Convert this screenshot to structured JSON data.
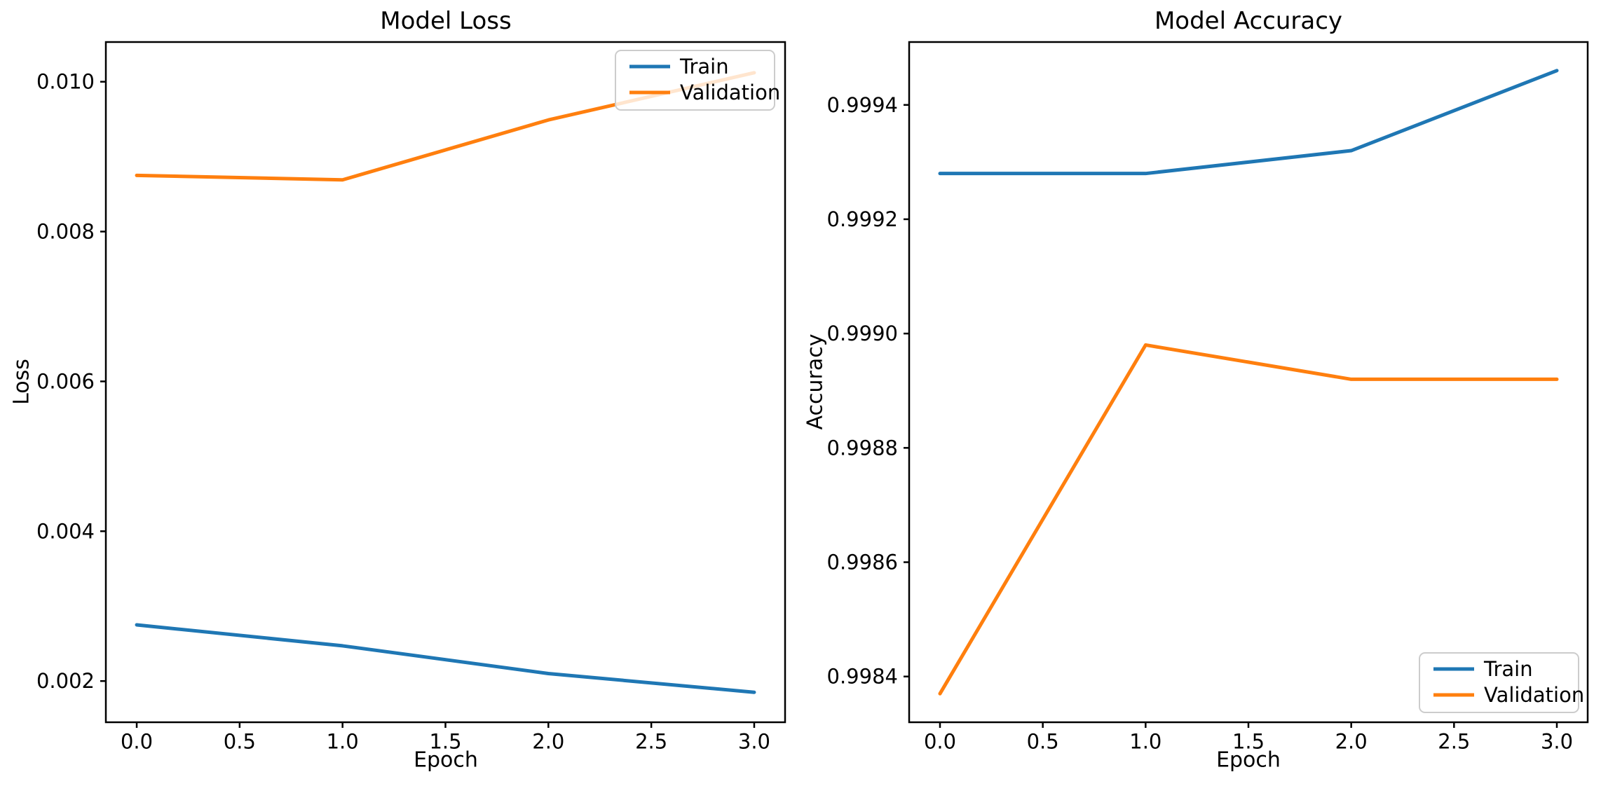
{
  "figure": {
    "background": "#ffffff",
    "text_color": "#000000",
    "spine_color": "#000000"
  },
  "chart_data": [
    {
      "type": "line",
      "title": "Model Loss",
      "xlabel": "Epoch",
      "ylabel": "Loss",
      "x": [
        0,
        1,
        2,
        3
      ],
      "series": [
        {
          "name": "Train",
          "color": "#1f77b4",
          "values": [
            0.00275,
            0.00247,
            0.0021,
            0.00185
          ]
        },
        {
          "name": "Validation",
          "color": "#ff7f0e",
          "values": [
            0.00875,
            0.00869,
            0.00949,
            0.01012
          ]
        }
      ],
      "xlim": [
        -0.15,
        3.15
      ],
      "ylim": [
        0.00145,
        0.01053
      ],
      "xticks": [
        0,
        0.5,
        1,
        1.5,
        2,
        2.5,
        3
      ],
      "xtick_labels": [
        "0.0",
        "0.5",
        "1.0",
        "1.5",
        "2.0",
        "2.5",
        "3.0"
      ],
      "yticks": [
        0.002,
        0.004,
        0.006,
        0.008,
        0.01
      ],
      "ytick_labels": [
        "0.002",
        "0.004",
        "0.006",
        "0.008",
        "0.010"
      ],
      "grid": false,
      "legend": {
        "position": "upper-right",
        "items": [
          "Train",
          "Validation"
        ]
      }
    },
    {
      "type": "line",
      "title": "Model Accuracy",
      "xlabel": "Epoch",
      "ylabel": "Accuracy",
      "x": [
        0,
        1,
        2,
        3
      ],
      "series": [
        {
          "name": "Train",
          "color": "#1f77b4",
          "values": [
            0.99928,
            0.99928,
            0.99932,
            0.99946
          ]
        },
        {
          "name": "Validation",
          "color": "#ff7f0e",
          "values": [
            0.99837,
            0.99898,
            0.99892,
            0.99892
          ]
        }
      ],
      "xlim": [
        -0.15,
        3.15
      ],
      "ylim": [
        0.99832,
        0.99951
      ],
      "xticks": [
        0,
        0.5,
        1,
        1.5,
        2,
        2.5,
        3
      ],
      "xtick_labels": [
        "0.0",
        "0.5",
        "1.0",
        "1.5",
        "2.0",
        "2.5",
        "3.0"
      ],
      "yticks": [
        0.9984,
        0.9986,
        0.9988,
        0.999,
        0.9992,
        0.9994
      ],
      "ytick_labels": [
        "0.9984",
        "0.9986",
        "0.9988",
        "0.9990",
        "0.9992",
        "0.9994"
      ],
      "grid": false,
      "legend": {
        "position": "lower-right",
        "items": [
          "Train",
          "Validation"
        ]
      }
    }
  ]
}
